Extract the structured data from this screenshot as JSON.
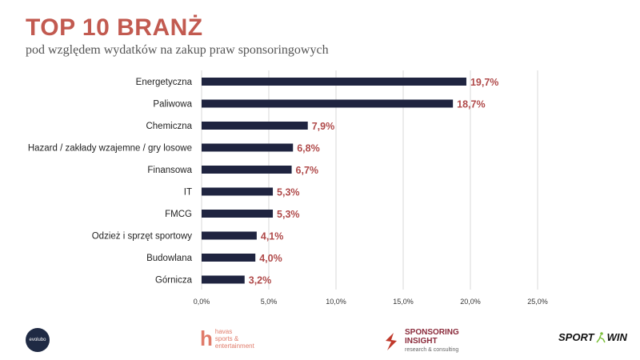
{
  "header": {
    "title": "TOP 10 BRANŻ",
    "subtitle": "pod względem wydatków na zakup praw sponsoringowych"
  },
  "chart_data": {
    "type": "bar",
    "orientation": "horizontal",
    "title": "TOP 10 BRANŻ",
    "subtitle": "pod względem wydatków na zakup praw sponsoringowych",
    "categories": [
      "Energetyczna",
      "Paliwowa",
      "Chemiczna",
      "Hazard / zakłady wzajemne / gry losowe",
      "Finansowa",
      "IT",
      "FMCG",
      "Odzież i sprzęt sportowy",
      "Budowlana",
      "Górnicza"
    ],
    "values": [
      19.7,
      18.7,
      7.9,
      6.8,
      6.7,
      5.3,
      5.3,
      4.1,
      4.0,
      3.2
    ],
    "value_labels": [
      "19,7%",
      "18,7%",
      "7,9%",
      "6,8%",
      "6,7%",
      "5,3%",
      "5,3%",
      "4,1%",
      "4,0%",
      "3,2%"
    ],
    "xlim": [
      0,
      25
    ],
    "x_ticks": [
      0,
      5,
      10,
      15,
      20,
      25
    ],
    "x_tick_labels": [
      "0,0%",
      "5,0%",
      "10,0%",
      "15,0%",
      "20,0%",
      "25,0%"
    ],
    "grid": "vertical",
    "legend": "none",
    "bar_color": "#1f2440",
    "label_color": "#b04a4a"
  },
  "footer": {
    "logos": [
      {
        "name": "evolubo",
        "text": "evolubo"
      },
      {
        "name": "havas",
        "mark": "h",
        "lines": [
          "havas",
          "sports &",
          "entertainment"
        ]
      },
      {
        "name": "sponsoring-insight",
        "lines": [
          "SPONSORING",
          "INSIGHT",
          "research & consulting"
        ]
      },
      {
        "name": "sportwin",
        "parts": [
          "SPORT",
          "WIN"
        ]
      }
    ],
    "colors": {
      "havas": "#e07b6a",
      "sponsoring_insight": "#8a2a3a",
      "evolubo": "#1f2a44"
    }
  }
}
